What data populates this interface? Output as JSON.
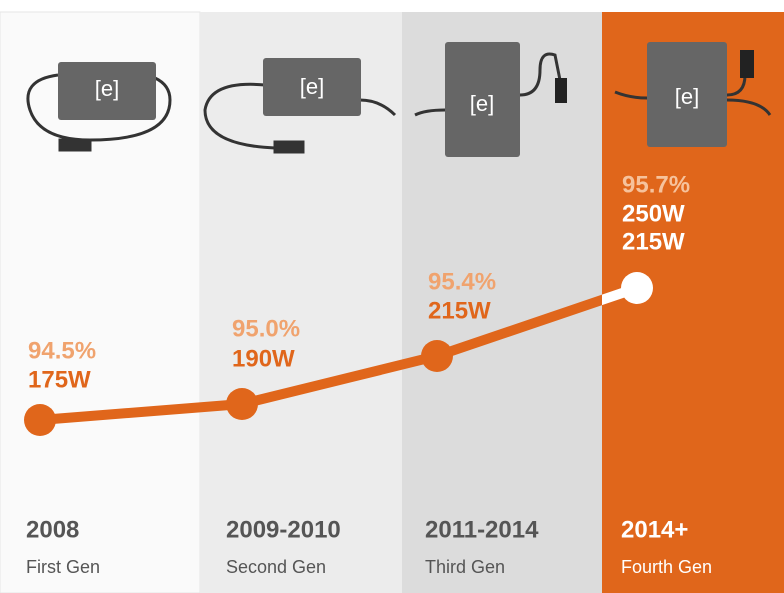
{
  "logo": "[e]",
  "columns": [
    {
      "efficiency": "94.5%",
      "power": [
        "175W"
      ],
      "years": "2008",
      "generation": "First Gen"
    },
    {
      "efficiency": "95.0%",
      "power": [
        "190W"
      ],
      "years": "2009-2010",
      "generation": "Second Gen"
    },
    {
      "efficiency": "95.4%",
      "power": [
        "215W"
      ],
      "years": "2011-2014",
      "generation": "Third Gen"
    },
    {
      "efficiency": "95.7%",
      "power": [
        "250W",
        "215W"
      ],
      "years": "2014+",
      "generation": "Fourth Gen"
    }
  ]
}
